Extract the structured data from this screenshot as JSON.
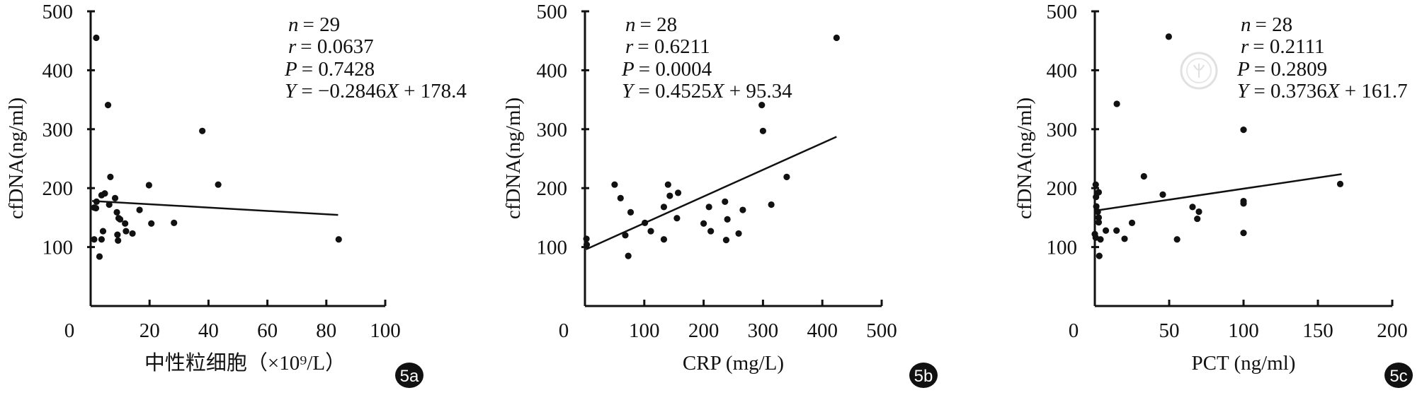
{
  "chart_data": [
    {
      "type": "scatter",
      "panel": "5a",
      "xlabel": "中性粒细胞（×10⁹/L）",
      "ylabel": "cfDNA(ng/ml)",
      "xlim": [
        0,
        100
      ],
      "ylim": [
        0,
        500
      ],
      "xticks": [
        "0",
        "20",
        "40",
        "60",
        "80",
        "100"
      ],
      "yticks": [
        "100",
        "200",
        "300",
        "400",
        "500"
      ],
      "stats": {
        "n": "= 29",
        "r": "= 0.0637",
        "P": "= 0.7428",
        "equation": "Y = −0.2846X + 178.4"
      },
      "fit": {
        "slope": -0.2846,
        "intercept": 178.4,
        "xrange": [
          0.5,
          84
        ]
      },
      "points": [
        [
          1.9,
          455
        ],
        [
          5.9,
          341
        ],
        [
          37.9,
          297
        ],
        [
          6.7,
          219
        ],
        [
          19.8,
          205
        ],
        [
          43.3,
          206
        ],
        [
          4.8,
          191
        ],
        [
          3.7,
          188
        ],
        [
          8.3,
          183
        ],
        [
          2.0,
          177
        ],
        [
          6.3,
          172
        ],
        [
          1.2,
          167
        ],
        [
          1.8,
          166
        ],
        [
          16.6,
          163
        ],
        [
          8.9,
          159
        ],
        [
          9.5,
          149
        ],
        [
          10,
          147
        ],
        [
          11.7,
          140
        ],
        [
          20.6,
          140
        ],
        [
          28.3,
          141
        ],
        [
          12,
          127
        ],
        [
          4.2,
          127
        ],
        [
          14.2,
          123
        ],
        [
          9.1,
          121
        ],
        [
          9.3,
          111
        ],
        [
          3.7,
          113
        ],
        [
          1.2,
          113
        ],
        [
          3,
          84
        ],
        [
          84.2,
          113
        ]
      ]
    },
    {
      "type": "scatter",
      "panel": "5b",
      "xlabel": "CRP (mg/L)",
      "ylabel": "cfDNA(ng/ml)",
      "xlim": [
        0,
        500
      ],
      "ylim": [
        0,
        500
      ],
      "xticks": [
        "0",
        "100",
        "200",
        "300",
        "400",
        "500"
      ],
      "yticks": [
        "100",
        "200",
        "300",
        "400",
        "500"
      ],
      "stats": {
        "n": "= 28",
        "r": "= 0.6211",
        "P": "= 0.0004",
        "equation": "Y = 0.4525X + 95.34"
      },
      "fit": {
        "slope": 0.4525,
        "intercept": 95.34,
        "xrange": [
          2,
          424
        ]
      },
      "points": [
        [
          424,
          455
        ],
        [
          298,
          341
        ],
        [
          300,
          297
        ],
        [
          340,
          219
        ],
        [
          50,
          206
        ],
        [
          140,
          206
        ],
        [
          157,
          192
        ],
        [
          143,
          187
        ],
        [
          60,
          183
        ],
        [
          314,
          172
        ],
        [
          133,
          168
        ],
        [
          209,
          168
        ],
        [
          236,
          177
        ],
        [
          266,
          163
        ],
        [
          77,
          159
        ],
        [
          155,
          149
        ],
        [
          240,
          147
        ],
        [
          101,
          141
        ],
        [
          200,
          140
        ],
        [
          111,
          127
        ],
        [
          212,
          127
        ],
        [
          259,
          123
        ],
        [
          68,
          120
        ],
        [
          2.5,
          114
        ],
        [
          133,
          113
        ],
        [
          238,
          112
        ],
        [
          73,
          85
        ],
        [
          3,
          104
        ]
      ]
    },
    {
      "type": "scatter",
      "panel": "5c",
      "xlabel": "PCT (ng/ml)",
      "ylabel": "cfDNA(ng/ml)",
      "xlim": [
        0,
        200
      ],
      "ylim": [
        0,
        500
      ],
      "xticks": [
        "0",
        "50",
        "100",
        "150",
        "200"
      ],
      "yticks": [
        "100",
        "200",
        "300",
        "400",
        "500"
      ],
      "stats": {
        "n": "= 28",
        "r": "= 0.2111",
        "P": "= 0.2809",
        "equation": "Y = 0.3736X + 161.7"
      },
      "fit": {
        "slope": 0.3736,
        "intercept": 161.7,
        "xrange": [
          0.5,
          166
        ]
      },
      "points": [
        [
          49.7,
          457
        ],
        [
          14.8,
          343
        ],
        [
          100,
          299
        ],
        [
          33,
          220
        ],
        [
          165,
          207
        ],
        [
          45.7,
          189
        ],
        [
          0.6,
          206
        ],
        [
          2.6,
          193
        ],
        [
          0.8,
          185
        ],
        [
          1,
          169
        ],
        [
          100,
          178
        ],
        [
          100,
          174
        ],
        [
          65.7,
          168
        ],
        [
          70,
          160
        ],
        [
          68.9,
          148
        ],
        [
          2.6,
          150
        ],
        [
          2.6,
          142
        ],
        [
          25,
          141
        ],
        [
          7.4,
          128
        ],
        [
          14.6,
          128
        ],
        [
          100,
          124
        ],
        [
          0,
          122
        ],
        [
          20,
          114
        ],
        [
          55.3,
          113
        ],
        [
          3.8,
          113
        ],
        [
          0.6,
          116
        ],
        [
          3,
          85
        ],
        [
          2,
          160
        ]
      ]
    }
  ],
  "watermark": "中华医学会",
  "colors": {
    "ink": "#111111",
    "badge": "#111111",
    "watermark": "#c8c8c8"
  }
}
